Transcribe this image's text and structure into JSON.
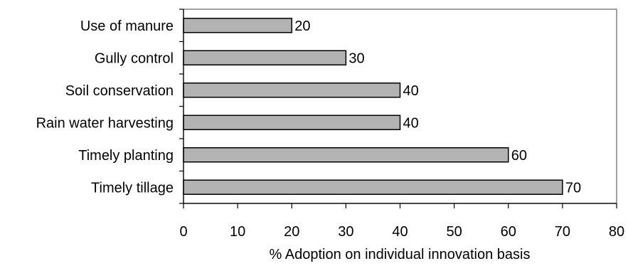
{
  "chart_data": {
    "type": "bar",
    "orientation": "horizontal",
    "categories": [
      "Use of manure",
      "Gully control",
      "Soil conservation",
      "Rain water harvesting",
      "Timely planting",
      "Timely tillage"
    ],
    "values": [
      20,
      30,
      40,
      40,
      60,
      70
    ],
    "data_labels": [
      "20",
      "30",
      "40",
      "40",
      "60",
      "70"
    ],
    "xlabel": "% Adoption on individual innovation basis",
    "xlim": [
      0,
      80
    ],
    "xticks": [
      0,
      10,
      20,
      30,
      40,
      50,
      60,
      70,
      80
    ],
    "xtick_labels": [
      "0",
      "10",
      "20",
      "30",
      "40",
      "50",
      "60",
      "70",
      "80"
    ],
    "grid": false,
    "bar_color": "#b3b3b3",
    "bar_edge_color": "#000000",
    "frame_color": "#808080"
  }
}
